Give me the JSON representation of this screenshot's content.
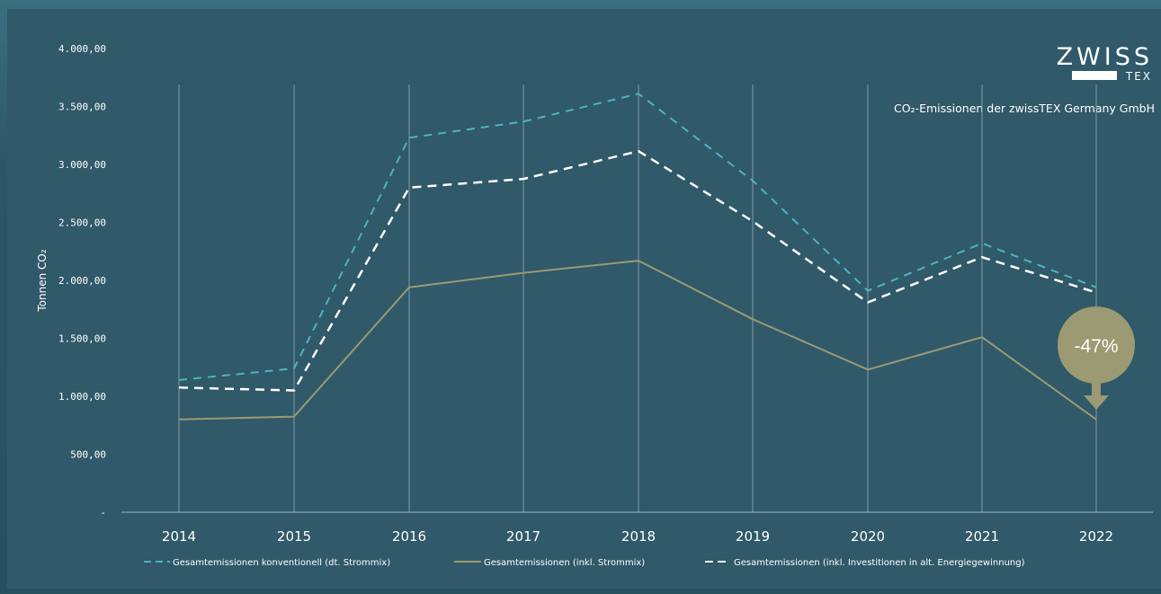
{
  "brand": {
    "logo_top": "ZWISS",
    "logo_bottom": "TEX"
  },
  "subtitle": "CO₂-Emissionen der zwissTEX Germany GmbH",
  "badge": {
    "text": "-47%",
    "color": "#9b9a72"
  },
  "colors": {
    "conventional": "#4fb3bf",
    "strommix": "#9b9a72",
    "investitionen": "#ffffff",
    "background": "#30596a"
  },
  "chart_data": {
    "type": "line",
    "title": "CO₂-Emissionen der zwissTEX Germany GmbH",
    "xlabel": "",
    "ylabel": "Tonnen CO₂",
    "ylim": [
      0,
      4000
    ],
    "ytick_labels": [
      "-",
      "500,00",
      "1.000,00",
      "1.500,00",
      "2.000,00",
      "2.500,00",
      "3.000,00",
      "3.500,00",
      "4.000,00"
    ],
    "categories": [
      "2014",
      "2015",
      "2016",
      "2017",
      "2018",
      "2019",
      "2020",
      "2021",
      "2022"
    ],
    "grid": "vertical",
    "legend_position": "bottom",
    "series": [
      {
        "name": "Gesamtemissionen konventionell (dt. Strommix)",
        "style": "dashed",
        "color": "#4fb3bf",
        "values": [
          1140,
          1240,
          3230,
          3370,
          3610,
          2860,
          1910,
          2320,
          1940
        ]
      },
      {
        "name": "Gesamtemissionen (inkl. Strommix)",
        "style": "solid",
        "color": "#9b9a72",
        "values": [
          800,
          825,
          1940,
          2065,
          2170,
          1665,
          1230,
          1510,
          800
        ]
      },
      {
        "name": "Gesamtemissionen (inkl. Investitionen in alt. Energiegewinnung)",
        "style": "dashed",
        "color": "#ffffff",
        "values": [
          1075,
          1050,
          2800,
          2875,
          3115,
          2510,
          1810,
          2200,
          1895
        ]
      }
    ]
  }
}
